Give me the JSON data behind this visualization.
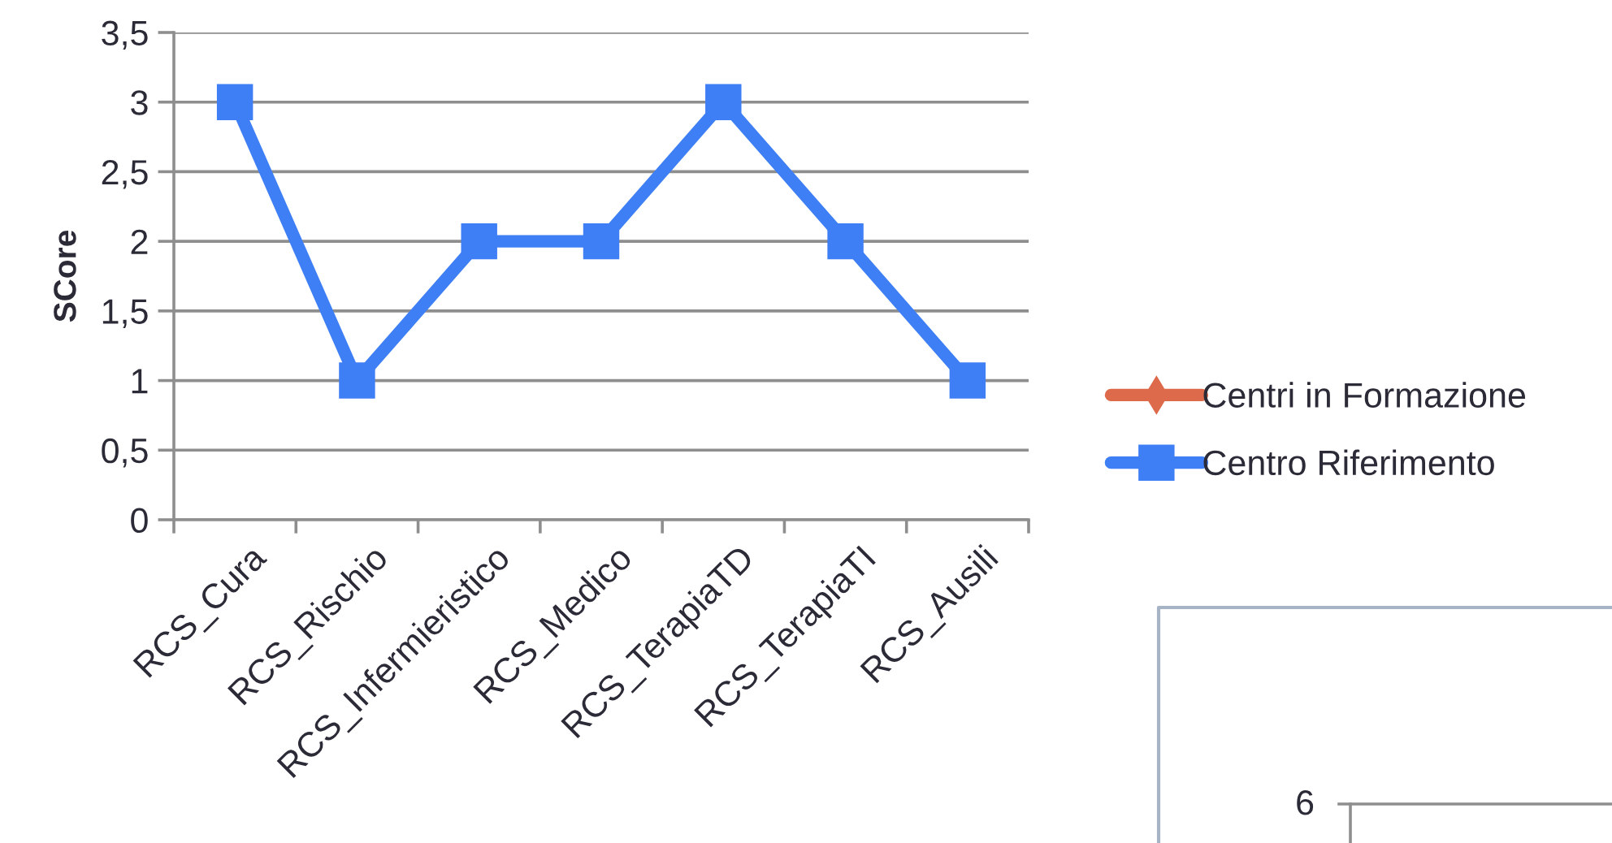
{
  "chart_data": [
    {
      "type": "line",
      "ylabel": "SCore",
      "categories": [
        "RCS_Cura",
        "RCS_Rischio",
        "RCS_Infermieristico",
        "RCS_Medico",
        "RCS_TerapiaTD",
        "RCS_TerapiaTI",
        "RCS_Ausili"
      ],
      "series": [
        {
          "name": "Centri in Formazione",
          "color": "#dd6a4a",
          "marker": "diamond",
          "values": [
            null,
            null,
            null,
            null,
            null,
            null,
            null
          ]
        },
        {
          "name": "Centro Riferimento",
          "color": "#3f7ff6",
          "marker": "square",
          "values": [
            3,
            1,
            2,
            2,
            3,
            2,
            1
          ]
        }
      ],
      "ylim": [
        0,
        3.5
      ],
      "yticks": [
        0,
        {
          "value": 0.5,
          "label": "0,5"
        },
        1,
        {
          "value": 1.5,
          "label": "1,5"
        },
        2,
        {
          "value": 2.5,
          "label": "2,5"
        },
        3,
        {
          "value": 3.5,
          "label": "3,5"
        }
      ],
      "grid": "y",
      "legend": "right",
      "line_style": "solid"
    },
    {
      "type": "other",
      "annotations": [
        "6"
      ]
    }
  ]
}
